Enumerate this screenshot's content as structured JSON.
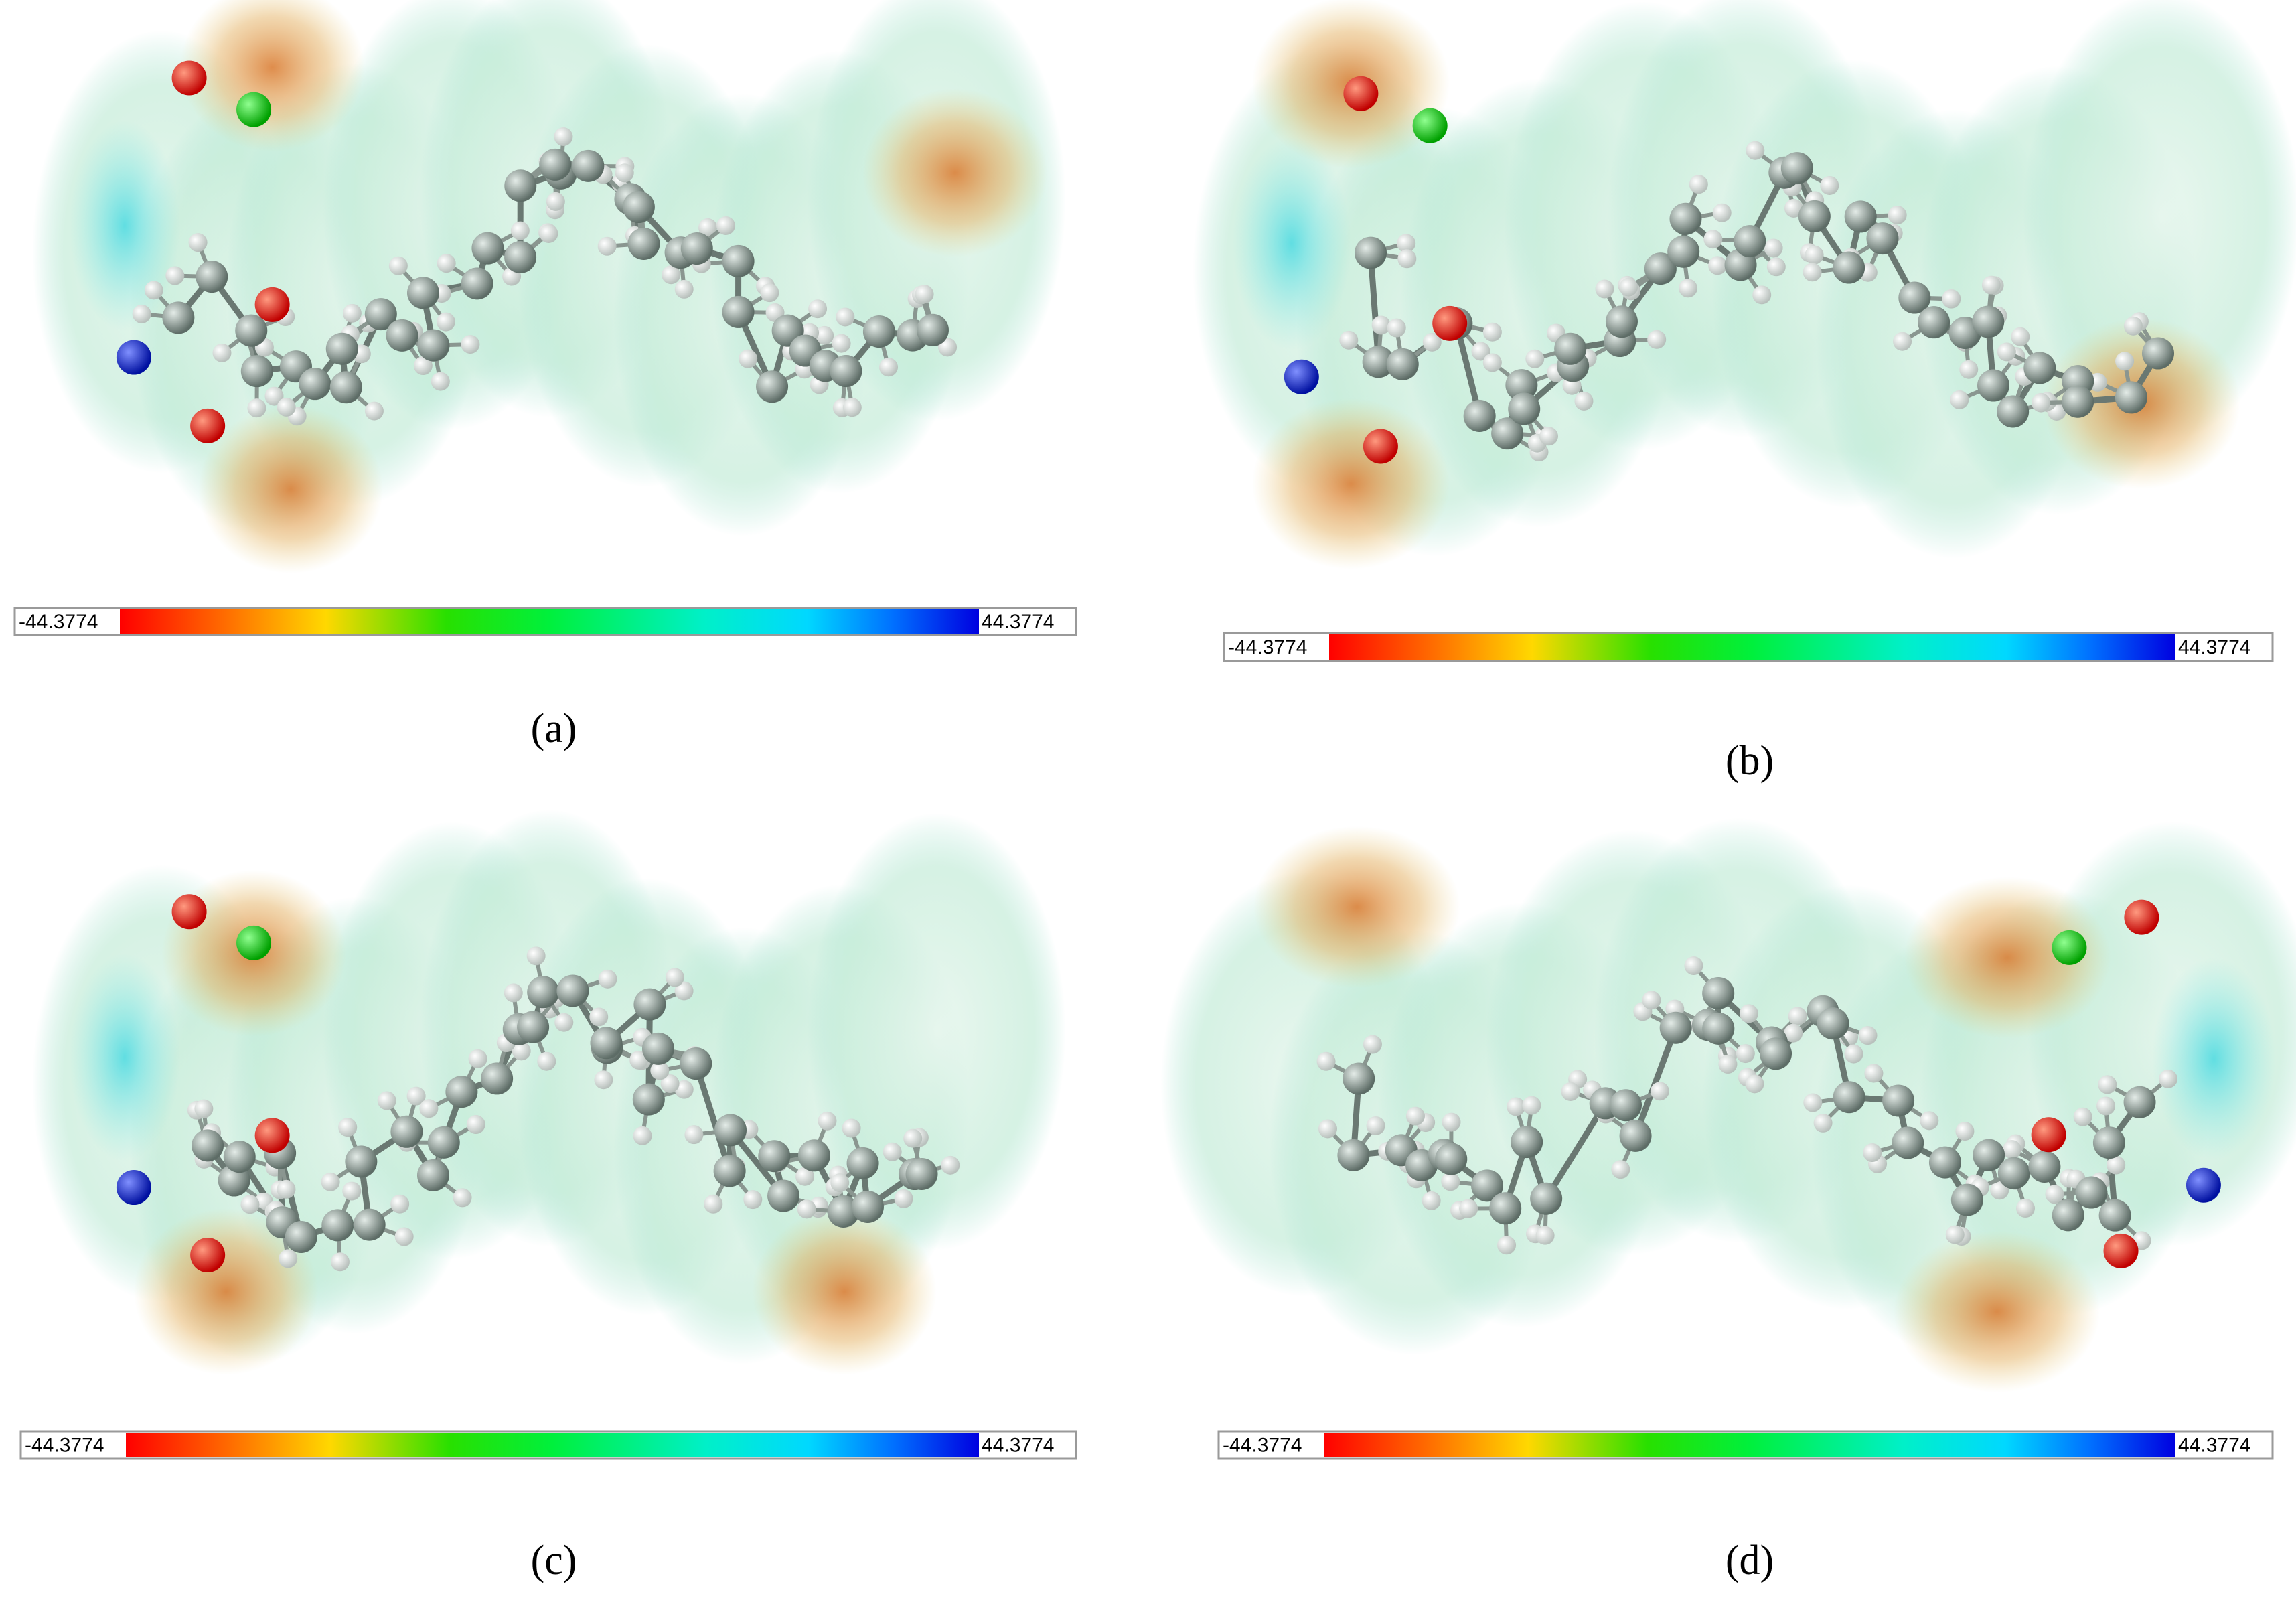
{
  "panels": [
    {
      "label": "(a)",
      "scale_min": "-44.3774",
      "scale_max": "44.3774"
    },
    {
      "label": "(b)",
      "scale_min": "-44.3774",
      "scale_max": "44.3774"
    },
    {
      "label": "(c)",
      "scale_min": "-44.3774",
      "scale_max": "44.3774"
    },
    {
      "label": "(d)",
      "scale_min": "-44.3774",
      "scale_max": "44.3774"
    }
  ]
}
